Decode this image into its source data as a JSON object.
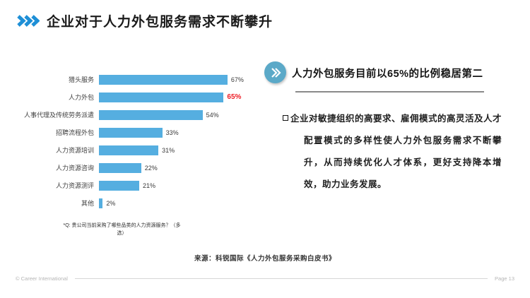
{
  "slide": {
    "title": "企业对于人力外包服务需求不断攀升"
  },
  "chart_data": {
    "type": "bar",
    "orientation": "horizontal",
    "categories": [
      "猎头服务",
      "人力外包",
      "人事代理及传统劳务派遣",
      "招聘流程外包",
      "人力资源培训",
      "人力资源咨询",
      "人力资源测评",
      "其他"
    ],
    "values": [
      67,
      65,
      54,
      33,
      31,
      22,
      21,
      2
    ],
    "unit": "%",
    "value_labels": [
      "67%",
      "65%",
      "54%",
      "33%",
      "31%",
      "22%",
      "21%",
      "2%"
    ],
    "highlight_index": 1,
    "bar_color": "#55aee0",
    "highlight_value_color": "#ed1c24",
    "xlim": [
      0,
      70
    ],
    "grid": false,
    "legend": "none",
    "footnote": "*Q: 贵公司当前采购了哪些品类的人力资源服务？（多选）"
  },
  "right_panel": {
    "heading": "人力外包服务目前以65%的比例稳居第二",
    "body": "企业对敏捷组织的高要求、雇佣模式的高灵活及人才配置模式的多样性使人力外包服务需求不断攀升，从而持续优化人才体系，更好支持降本增效，助力业务发展。"
  },
  "source": "来源：科锐国际《人力外包服务采购白皮书》",
  "footer": {
    "left": "© Career International",
    "right": "Page 13"
  },
  "colors": {
    "title_chevron": "#1e8fd6",
    "bar": "#55aee0",
    "highlight_value": "#ed1c24",
    "panel_icon_bg": "#5ba9c8"
  }
}
